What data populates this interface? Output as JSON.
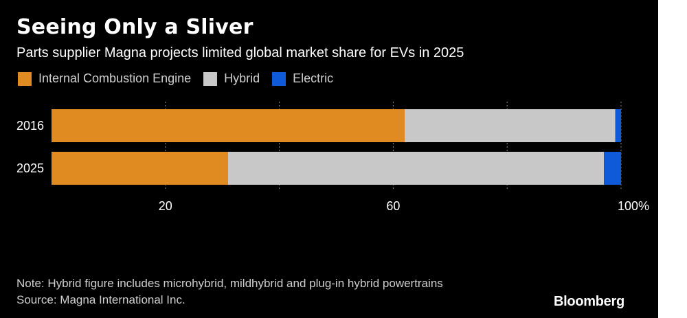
{
  "title": "Seeing Only a Sliver",
  "subtitle": "Parts supplier Magna projects limited global market share for EVs in 2025",
  "note": "Note: Hybrid figure includes microhybrid, mildhybrid and plug-in hybrid powertrains",
  "source": "Source: Magna International Inc.",
  "logo": "Bloomberg",
  "colors": {
    "background": "#000000",
    "ice": "#e08a22",
    "hybrid": "#c8c8c8",
    "electric": "#0f5ad8",
    "text": "#ffffff",
    "muted": "#cfcfcf"
  },
  "chart_data": {
    "type": "bar",
    "orientation": "horizontal",
    "stacked": true,
    "title": "Seeing Only a Sliver",
    "categories": [
      "2016",
      "2025"
    ],
    "series": [
      {
        "name": "Internal Combustion Engine",
        "color": "#e08a22",
        "values": [
          62,
          31
        ]
      },
      {
        "name": "Hybrid",
        "color": "#c8c8c8",
        "values": [
          37,
          66
        ]
      },
      {
        "name": "Electric",
        "color": "#0f5ad8",
        "values": [
          1,
          3
        ]
      }
    ],
    "xlim": [
      0,
      100
    ],
    "xticks": [
      {
        "value": 20,
        "label": "20"
      },
      {
        "value": 60,
        "label": "60"
      },
      {
        "value": 100,
        "label": "100%"
      }
    ],
    "gridlines": [
      20,
      40,
      60,
      80,
      100
    ],
    "grid": true,
    "legend": "top-left"
  }
}
